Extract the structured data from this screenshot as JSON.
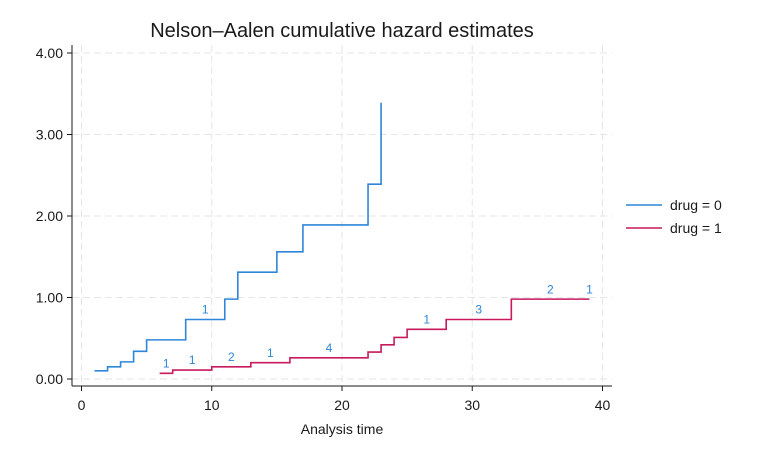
{
  "chart_data": {
    "type": "line",
    "title": "Nelson–Aalen cumulative hazard estimates",
    "xlabel": "Analysis time",
    "ylabel": "",
    "xlim": [
      0,
      40
    ],
    "ylim": [
      0,
      4
    ],
    "x_ticks": [
      {
        "value": 0,
        "label": "0"
      },
      {
        "value": 10,
        "label": "10"
      },
      {
        "value": 20,
        "label": "20"
      },
      {
        "value": 30,
        "label": "30"
      },
      {
        "value": 40,
        "label": "40"
      }
    ],
    "y_ticks": [
      {
        "value": 0,
        "label": "0.00"
      },
      {
        "value": 1,
        "label": "1.00"
      },
      {
        "value": 2,
        "label": "2.00"
      },
      {
        "value": 3,
        "label": "3.00"
      },
      {
        "value": 4,
        "label": "4.00"
      }
    ],
    "grid": true,
    "legend_position": "right",
    "series": [
      {
        "name": "drug = 0",
        "color": "#2e86d9",
        "step": true,
        "points": [
          [
            1,
            0.1
          ],
          [
            2,
            0.15
          ],
          [
            3,
            0.21
          ],
          [
            4,
            0.34
          ],
          [
            5,
            0.48
          ],
          [
            8,
            0.73
          ],
          [
            11,
            0.98
          ],
          [
            12,
            1.31
          ],
          [
            15,
            1.56
          ],
          [
            17,
            1.89
          ],
          [
            22,
            2.39
          ],
          [
            23,
            3.39
          ]
        ],
        "end_x": 23
      },
      {
        "name": "drug = 1",
        "color": "#c8195c",
        "step": true,
        "points": [
          [
            6,
            0.07
          ],
          [
            7,
            0.11
          ],
          [
            10,
            0.15
          ],
          [
            13,
            0.2
          ],
          [
            16,
            0.26
          ],
          [
            22,
            0.33
          ],
          [
            23,
            0.42
          ],
          [
            24,
            0.51
          ],
          [
            25,
            0.61
          ],
          [
            28,
            0.73
          ],
          [
            33,
            0.98
          ]
        ],
        "end_x": 39
      }
    ],
    "at_risk_labels": {
      "color": "#2e86d9",
      "items": [
        {
          "x": 9.5,
          "y": 0.74,
          "text": "1"
        },
        {
          "x": 6.5,
          "y": 0.08,
          "text": "1"
        },
        {
          "x": 8.5,
          "y": 0.12,
          "text": "1"
        },
        {
          "x": 11.5,
          "y": 0.16,
          "text": "2"
        },
        {
          "x": 14.5,
          "y": 0.21,
          "text": "1"
        },
        {
          "x": 19.0,
          "y": 0.27,
          "text": "4"
        },
        {
          "x": 26.5,
          "y": 0.62,
          "text": "1"
        },
        {
          "x": 30.5,
          "y": 0.74,
          "text": "3"
        },
        {
          "x": 36.0,
          "y": 0.99,
          "text": "2"
        },
        {
          "x": 39.0,
          "y": 0.99,
          "text": "1"
        }
      ]
    }
  }
}
